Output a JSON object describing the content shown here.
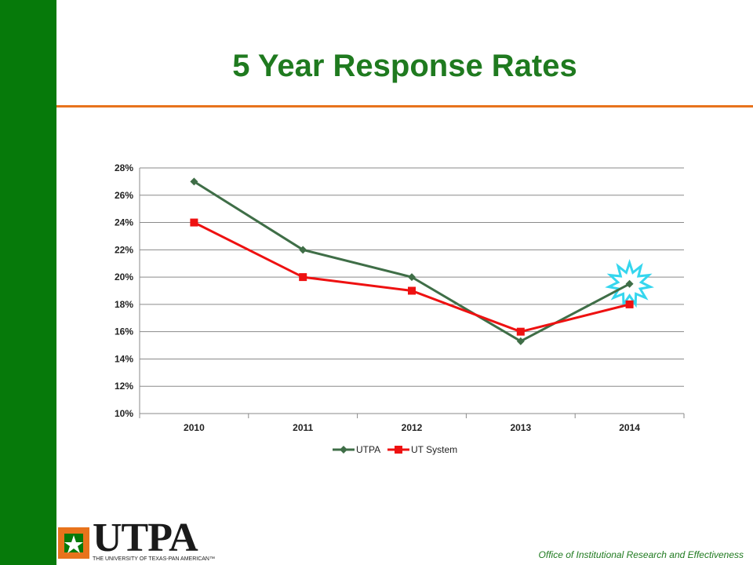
{
  "slide": {
    "title": "5 Year Response Rates",
    "footer": "Office of Institutional Research and Effectiveness",
    "logo_wordmark": "UTPA",
    "logo_tagline": "THE UNIVERSITY OF TEXAS-PAN AMERICAN™"
  },
  "colors": {
    "sidebar": "#067a0a",
    "rule": "#e8731c",
    "title": "#1f7a1f",
    "utpa": "#3f6e47",
    "ut_system": "#ee1111",
    "burst": "#35d6ee"
  },
  "chart_data": {
    "type": "line",
    "categories": [
      "2010",
      "2011",
      "2012",
      "2013",
      "2014"
    ],
    "ylim": [
      0.1,
      0.28
    ],
    "yticks": [
      "10%",
      "12%",
      "14%",
      "16%",
      "18%",
      "20%",
      "22%",
      "24%",
      "26%",
      "28%"
    ],
    "grid": true,
    "legend": "bottom",
    "series": [
      {
        "name": "UTPA",
        "values": [
          0.27,
          0.22,
          0.2,
          0.153,
          0.195
        ],
        "color": "#3f6e47",
        "marker": "diamond"
      },
      {
        "name": "UT System",
        "values": [
          0.24,
          0.2,
          0.19,
          0.16,
          0.18
        ],
        "color": "#ee1111",
        "marker": "square"
      }
    ],
    "annotation": "burst-highlight on UTPA 2014"
  }
}
